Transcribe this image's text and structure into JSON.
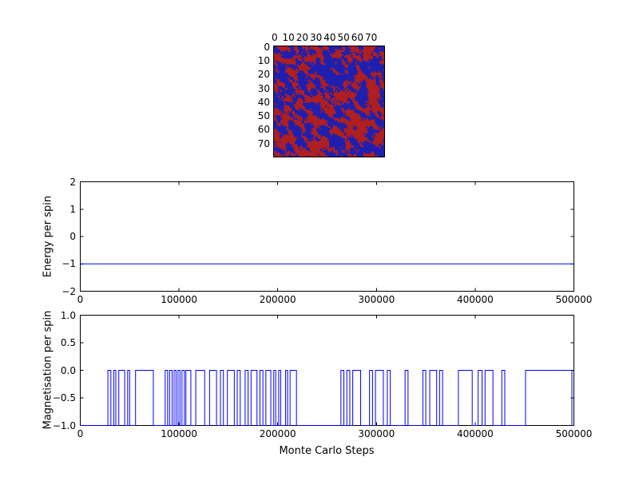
{
  "figure": {
    "background": "#ffffff"
  },
  "chart_data": [
    {
      "type": "heatmap",
      "name": "ising-spin-lattice",
      "grid_size": [
        80,
        80
      ],
      "x_ticks": [
        0,
        10,
        20,
        30,
        40,
        50,
        60,
        70
      ],
      "y_ticks": [
        0,
        10,
        20,
        30,
        40,
        50,
        60,
        70
      ],
      "x_tick_labels": [
        "0",
        "10",
        "20",
        "30",
        "40",
        "50",
        "60",
        "70"
      ],
      "y_tick_labels": [
        "0",
        "10",
        "20",
        "30",
        "40",
        "50",
        "60",
        "70"
      ],
      "colors": {
        "spin_up": "#af1f1f",
        "spin_down": "#1f1faf"
      },
      "note": "Random clustered Ising spin configuration, roughly half red (up) and half blue (down) domains"
    },
    {
      "type": "line",
      "name": "energy-per-spin",
      "ylabel": "Energy per spin",
      "xlim": [
        0,
        500000
      ],
      "ylim": [
        -2,
        2
      ],
      "x_ticks": [
        0,
        100000,
        200000,
        300000,
        400000,
        500000
      ],
      "y_ticks": [
        2,
        1,
        0,
        -1,
        -2
      ],
      "x_tick_labels": [
        "0",
        "100000",
        "200000",
        "300000",
        "400000",
        "500000"
      ],
      "y_tick_labels": [
        "2",
        "1",
        "0",
        "−1",
        "−2"
      ],
      "x": [
        0,
        500000
      ],
      "y": [
        -1,
        -1
      ],
      "line_color": "#0000ff"
    },
    {
      "type": "line",
      "name": "magnetisation-per-spin",
      "ylabel": "Magnetisation per spin",
      "xlabel": "Monte Carlo Steps",
      "xlim": [
        0,
        500000
      ],
      "ylim": [
        -1,
        1
      ],
      "x_ticks": [
        0,
        100000,
        200000,
        300000,
        400000,
        500000
      ],
      "y_ticks": [
        1.0,
        0.5,
        0.0,
        -0.5,
        -1.0
      ],
      "x_tick_labels": [
        "0",
        "100000",
        "200000",
        "300000",
        "400000",
        "500000"
      ],
      "y_tick_labels": [
        "1.0",
        "0.5",
        "0.0",
        "−0.5",
        "−1.0"
      ],
      "base_value": -1,
      "high_value": 0,
      "zero_intervals": [
        [
          28000,
          31000
        ],
        [
          34000,
          36000
        ],
        [
          39000,
          45000
        ],
        [
          48000,
          50000
        ],
        [
          56000,
          74000
        ],
        [
          86000,
          88500
        ],
        [
          90500,
          93000
        ],
        [
          95000,
          97000
        ],
        [
          99000,
          101000
        ],
        [
          103000,
          105500
        ],
        [
          107000,
          112000
        ],
        [
          117000,
          126000
        ],
        [
          131000,
          138000
        ],
        [
          142000,
          145000
        ],
        [
          149000,
          156000
        ],
        [
          159000,
          162000
        ],
        [
          167000,
          170000
        ],
        [
          173000,
          179000
        ],
        [
          182000,
          185000
        ],
        [
          188000,
          193000
        ],
        [
          196000,
          198000
        ],
        [
          201000,
          203000
        ],
        [
          208000,
          210000
        ],
        [
          212500,
          219000
        ],
        [
          264000,
          267000
        ],
        [
          270000,
          273000
        ],
        [
          276000,
          284000
        ],
        [
          293000,
          296000
        ],
        [
          299000,
          307000
        ],
        [
          311000,
          314000
        ],
        [
          329000,
          332000
        ],
        [
          347000,
          350000
        ],
        [
          354000,
          361000
        ],
        [
          364000,
          367000
        ],
        [
          383000,
          397000
        ],
        [
          403000,
          407000
        ],
        [
          410000,
          418000
        ],
        [
          427000,
          430000
        ],
        [
          451000,
          498000
        ]
      ],
      "line_color": "#0000ff"
    }
  ]
}
